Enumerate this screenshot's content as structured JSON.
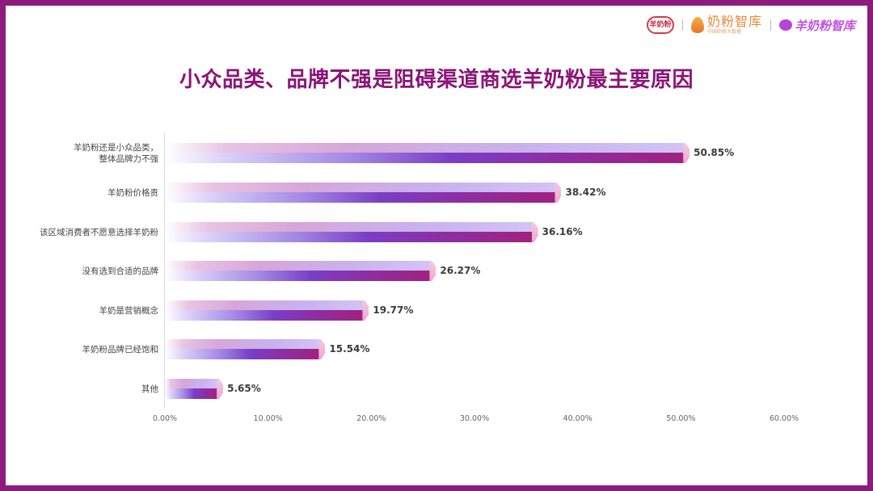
{
  "header": {
    "logos": [
      {
        "name": "brand-logo-1",
        "text": "羊奶粉"
      },
      {
        "name": "naifen-zhiku-logo",
        "text": "奶粉智库",
        "sub": "中国奶粉大数据"
      },
      {
        "name": "brand-logo-3",
        "text": "羊奶粉智库"
      }
    ]
  },
  "chart_data": {
    "type": "bar",
    "orientation": "horizontal",
    "title": "小众品类、品牌不强是阻碍渠道商选羊奶粉最主要原因",
    "xlabel": "",
    "ylabel": "",
    "xlim": [
      0,
      60
    ],
    "grid": false,
    "legend": null,
    "categories": [
      "羊奶粉还是小众品类，整体品牌力不强",
      "羊奶粉价格贵",
      "该区域消费者不愿意选择羊奶粉",
      "没有选到合适的品牌",
      "羊奶是营销概念",
      "羊奶粉品牌已经饱和",
      "其他"
    ],
    "values": [
      50.85,
      38.42,
      36.16,
      26.27,
      19.77,
      15.54,
      5.65
    ],
    "value_labels": [
      "50.85%",
      "38.42%",
      "36.16%",
      "26.27%",
      "19.77%",
      "15.54%",
      "5.65%"
    ],
    "x_ticks": [
      "0.00%",
      "10.00%",
      "20.00%",
      "30.00%",
      "40.00%",
      "50.00%",
      "60.00%"
    ],
    "colors": {
      "bar_dark": "#a1217f",
      "bar_mid": "#7a3ec6",
      "bar_light": "#d3c3f5",
      "cap": "#f0a6cf",
      "title": "#8b1477",
      "frame": "#8c1b7b"
    }
  },
  "labels": {
    "cat0_line1": "羊奶粉还是小众品类，",
    "cat0_line2": "整体品牌力不强"
  }
}
